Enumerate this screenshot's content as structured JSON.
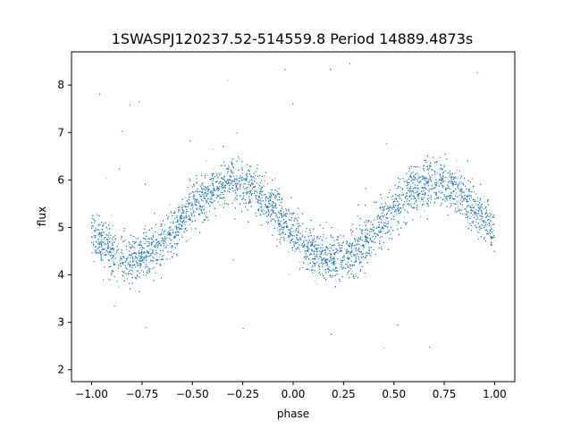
{
  "chart_data": {
    "type": "scatter",
    "title": "1SWASPJ120237.52-514559.8 Period 14889.4873s",
    "xlabel": "phase",
    "ylabel": "flux",
    "xlim": [
      -1.1,
      1.1
    ],
    "ylim": [
      1.75,
      8.7
    ],
    "x_ticks": [
      -1.0,
      -0.75,
      -0.5,
      -0.25,
      0.0,
      0.25,
      0.5,
      0.75,
      1.0
    ],
    "x_tick_labels": [
      "−1.00",
      "−0.75",
      "−0.50",
      "−0.25",
      "0.00",
      "0.25",
      "0.50",
      "0.75",
      "1.00"
    ],
    "y_ticks": [
      2,
      3,
      4,
      5,
      6,
      7,
      8
    ],
    "y_tick_labels": [
      "2",
      "3",
      "4",
      "5",
      "6",
      "7",
      "8"
    ],
    "grid": false,
    "point_color": "#1f77b4",
    "model": {
      "description": "sinusoidal phase-folded light curve",
      "mean_flux": 5.15,
      "amplitude": 0.8,
      "period_in_phase": 1.0,
      "peak_phase": [
        -0.3,
        0.7
      ],
      "trough_phase": [
        -0.8,
        0.2
      ],
      "scatter_sigma": 0.25,
      "n_points": 14000,
      "outlier_range": [
        2.0,
        8.5
      ]
    }
  }
}
